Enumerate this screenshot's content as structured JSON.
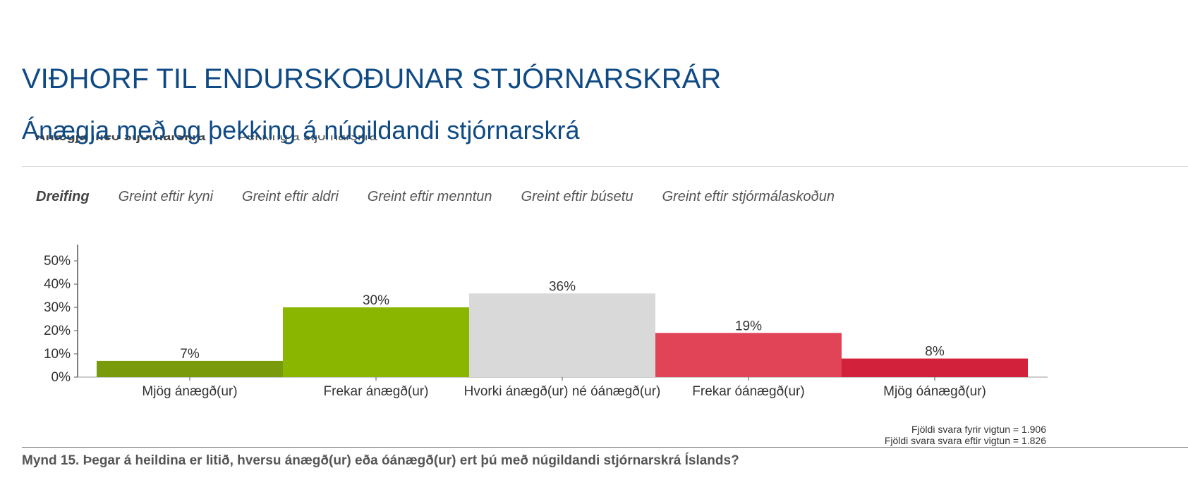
{
  "header": {
    "title": "VIÐHORF TIL ENDURSKOÐUNAR STJÓRNARSKRÁR",
    "subtitle": "Ánægja með og þekking á núgildandi stjórnarskrá"
  },
  "top_tabs": [
    {
      "label": "Ánægja með stjórnarskrá",
      "active": true
    },
    {
      "label": "Þekking á stjórnarskrá",
      "active": false
    }
  ],
  "sub_tabs": [
    {
      "label": "Dreifing",
      "active": true
    },
    {
      "label": "Greint eftir kyni",
      "active": false
    },
    {
      "label": "Greint eftir aldri",
      "active": false
    },
    {
      "label": "Greint eftir menntun",
      "active": false
    },
    {
      "label": "Greint eftir búsetu",
      "active": false
    },
    {
      "label": "Greint eftir stjórmálaskoðun",
      "active": false
    }
  ],
  "chart_data": {
    "type": "bar",
    "categories": [
      "Mjög ánægð(ur)",
      "Frekar ánægð(ur)",
      "Hvorki ánægð(ur) né óánægð(ur)",
      "Frekar óánægð(ur)",
      "Mjög óánægð(ur)"
    ],
    "values": [
      7,
      30,
      36,
      19,
      8
    ],
    "value_labels": [
      "7%",
      "30%",
      "36%",
      "19%",
      "8%"
    ],
    "colors": [
      "#789a0b",
      "#8ab600",
      "#d9d9d9",
      "#e14357",
      "#d2213a"
    ],
    "yticks": [
      "0%",
      "10%",
      "20%",
      "30%",
      "40%",
      "50%"
    ],
    "ylim": [
      0,
      57
    ],
    "grid": false,
    "legend": "none"
  },
  "notes": {
    "before_weighting": "Fjöldi svara fyrir vigtun = 1.906",
    "after_weighting": "Fjöldi svara svara eftir vigtun = 1.826"
  },
  "caption": "Mynd 15. Þegar á heildina er litið, hversu ánægð(ur) eða óánægð(ur) ert þú með núgildandi stjórnarskrá Íslands?"
}
